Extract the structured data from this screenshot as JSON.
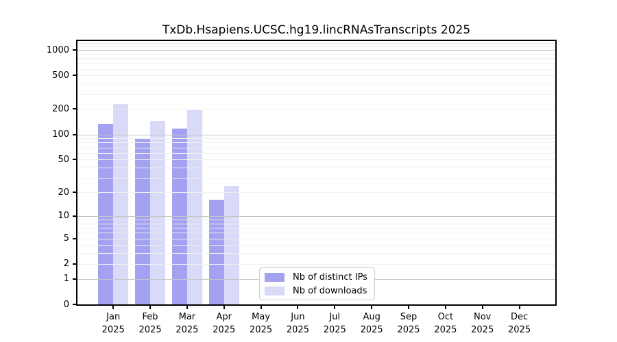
{
  "chart_data": {
    "type": "bar",
    "title": "TxDb.Hsapiens.UCSC.hg19.lincRNAsTranscripts 2025",
    "categories": [
      "Jan",
      "Feb",
      "Mar",
      "Apr",
      "May",
      "Jun",
      "Jul",
      "Aug",
      "Sep",
      "Oct",
      "Nov",
      "Dec"
    ],
    "year": "2025",
    "series": [
      {
        "name": "Nb of distinct IPs",
        "color": "#a2a2f0",
        "values": [
          135,
          90,
          118,
          16,
          0,
          0,
          0,
          0,
          0,
          0,
          0,
          0
        ]
      },
      {
        "name": "Nb of downloads",
        "color": "#d9d9f8",
        "values": [
          232,
          145,
          194,
          24,
          0,
          0,
          0,
          0,
          0,
          0,
          0,
          0
        ]
      }
    ],
    "yscale": "log1p",
    "yticks": [
      0,
      1,
      2,
      5,
      10,
      20,
      50,
      100,
      200,
      500,
      1000
    ],
    "ylim": [
      0,
      1275
    ],
    "xlabel": "",
    "ylabel": "",
    "grid": "horizontal, major decades darker, minor log subdivisions faint, drawn over bars",
    "legend_position": "inside lower-center-left"
  },
  "colors": {
    "bar_distinct_ips": "#a2a2f0",
    "bar_downloads": "#d9d9f8",
    "grid_major": "#c6c6c6",
    "grid_minor": "#f0f0f0",
    "axis": "#000000",
    "legend_border": "#cccccc"
  }
}
